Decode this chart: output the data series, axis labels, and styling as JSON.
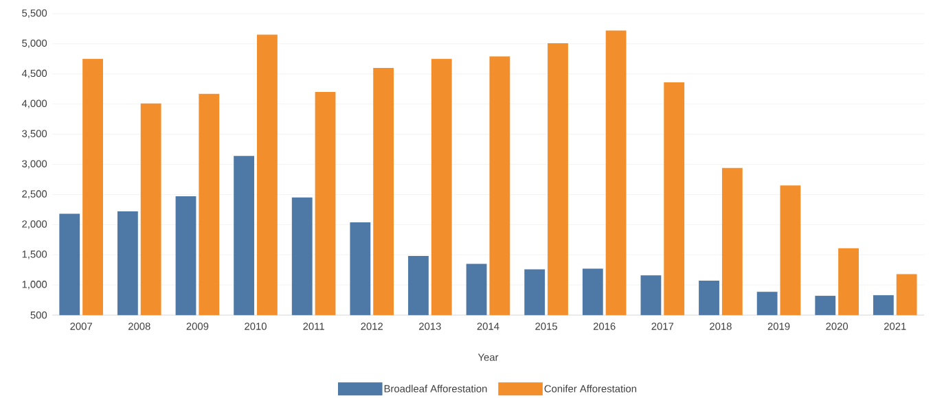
{
  "chart_data": {
    "type": "bar",
    "xlabel": "Year",
    "categories": [
      "2007",
      "2008",
      "2009",
      "2010",
      "2011",
      "2012",
      "2013",
      "2014",
      "2015",
      "2016",
      "2017",
      "2018",
      "2019",
      "2020",
      "2021"
    ],
    "series": [
      {
        "name": "Broadleaf Afforestation",
        "color": "#4e79a7",
        "values": [
          2180,
          2220,
          2470,
          3140,
          2450,
          2040,
          1480,
          1350,
          1260,
          1270,
          1160,
          1070,
          885,
          820,
          830
        ]
      },
      {
        "name": "Conifer Afforestation",
        "color": "#f28e2b",
        "values": [
          4750,
          4010,
          4170,
          5150,
          4200,
          4600,
          4750,
          4790,
          5010,
          5220,
          4360,
          2940,
          2650,
          1610,
          1180
        ]
      }
    ],
    "ylim": [
      500,
      5500
    ],
    "yticks": [
      500,
      {
        "value": 1000,
        "label": "1,000"
      },
      {
        "value": 1500,
        "label": "1,500"
      },
      {
        "value": 2000,
        "label": "2,000"
      },
      {
        "value": 2500,
        "label": "2,500"
      },
      {
        "value": 3000,
        "label": "3,000"
      },
      {
        "value": 3500,
        "label": "3,500"
      },
      {
        "value": 4000,
        "label": "4,000"
      },
      {
        "value": 4500,
        "label": "4,500"
      },
      {
        "value": 5000,
        "label": "5,000"
      },
      {
        "value": 5500,
        "label": "5,500"
      }
    ],
    "grid": "y",
    "legend": "bottom"
  }
}
